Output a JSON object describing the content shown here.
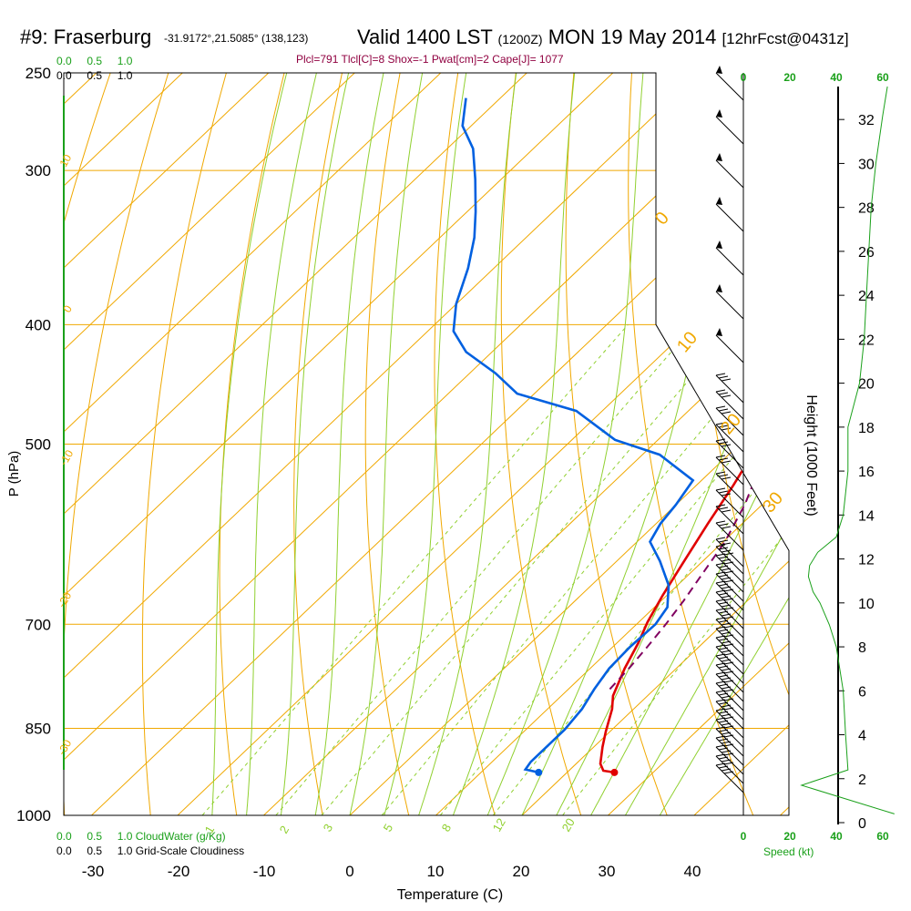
{
  "header": {
    "station": "#9: Fraserburg",
    "coords": "-31.9172°,21.5085° (138,123)",
    "valid": "Valid 1400 LST",
    "utc": "(1200Z)",
    "date": "MON 19 May 2014",
    "fcst": "[12hrFcst@0431z]"
  },
  "indices": "Plcl=791 Tlcl[C]=8 Shox=-1 Pwat[cm]=2 Cape[J]= 1077",
  "scales": {
    "cloudwater": [
      "0.0",
      "0.5",
      "1.0"
    ],
    "cloudiness": [
      "0.0",
      "0.5",
      "1.0"
    ],
    "cloudwater_label": "CloudWater (g/Kg)",
    "cloudiness_label": "Grid-Scale Cloudiness",
    "speed": [
      "0",
      "20",
      "40",
      "60"
    ],
    "speed_label": "Speed (kt)"
  },
  "chart_data": {
    "type": "line",
    "subtype": "skew-T log-P sounding",
    "xlabel": "Temperature (C)",
    "ylabel": "P (hPa)",
    "y2label": "Height (1000 Feet)",
    "xlim": [
      -33,
      40
    ],
    "ylim": [
      1000,
      250
    ],
    "x_ticks": [
      -30,
      -20,
      -10,
      0,
      10,
      20,
      30,
      40
    ],
    "y_ticks": [
      250,
      300,
      400,
      500,
      700,
      850,
      1000
    ],
    "height_ticks": [
      0,
      2,
      4,
      6,
      8,
      10,
      12,
      14,
      16,
      18,
      20,
      22,
      24,
      26,
      28,
      30,
      32
    ],
    "isotherm_labels": [
      "10",
      "0",
      "-10",
      "-20",
      "-30",
      "0",
      "10",
      "20",
      "30"
    ],
    "mixing_ratio_labels": [
      "1",
      "2",
      "3",
      "5",
      "8",
      "12",
      "20"
    ],
    "series": [
      {
        "name": "Temperature",
        "color": "#e00000",
        "points": [
          [
            25.5,
            923
          ],
          [
            24,
            920
          ],
          [
            22.8,
            908
          ],
          [
            21,
            880
          ],
          [
            19.5,
            855
          ],
          [
            17.5,
            820
          ],
          [
            16,
            800
          ],
          [
            14,
            760
          ],
          [
            12.5,
            725
          ],
          [
            11,
            697
          ],
          [
            9.5,
            663
          ],
          [
            8,
            626
          ],
          [
            6,
            580
          ],
          [
            4.3,
            540
          ],
          [
            2.2,
            500
          ],
          [
            1.2,
            478
          ],
          [
            -0.3,
            442
          ],
          [
            -2.5,
            408
          ],
          [
            -5,
            377
          ],
          [
            -7.5,
            350
          ],
          [
            -9.5,
            327
          ],
          [
            -10.5,
            308
          ],
          [
            -11.3,
            290
          ],
          [
            -12,
            275
          ],
          [
            -12.8,
            262
          ]
        ]
      },
      {
        "name": "Dewpoint",
        "color": "#0060e0",
        "points": [
          [
            16.7,
            923
          ],
          [
            14.8,
            918
          ],
          [
            14.5,
            905
          ],
          [
            14.5,
            885
          ],
          [
            14.5,
            852
          ],
          [
            14,
            820
          ],
          [
            13,
            790
          ],
          [
            12.2,
            760
          ],
          [
            12,
            730
          ],
          [
            12.2,
            700
          ],
          [
            11.5,
            678
          ],
          [
            9,
            651
          ],
          [
            5,
            622
          ],
          [
            1.5,
            600
          ],
          [
            0.5,
            580
          ],
          [
            0,
            560
          ],
          [
            -1,
            535
          ],
          [
            -8,
            510
          ],
          [
            -15,
            496
          ],
          [
            -23,
            470
          ],
          [
            -32,
            455
          ],
          [
            -37,
            438
          ],
          [
            -43,
            421
          ],
          [
            -47,
            405
          ],
          [
            -50,
            385
          ],
          [
            -53,
            360
          ],
          [
            -56,
            340
          ],
          [
            -59,
            324
          ],
          [
            -63,
            305
          ],
          [
            -67,
            288
          ],
          [
            -71,
            276
          ],
          [
            -74,
            262
          ]
        ]
      },
      {
        "name": "Parcel",
        "color": "#800060",
        "dashed": true,
        "points": [
          [
            14.8,
            790
          ],
          [
            14.5,
            760
          ],
          [
            14,
            730
          ],
          [
            13.4,
            700
          ],
          [
            12.6,
            670
          ],
          [
            11.6,
            640
          ],
          [
            10.2,
            600
          ],
          [
            8,
            560
          ],
          [
            5,
            520
          ],
          [
            2,
            490
          ],
          [
            -1,
            462
          ],
          [
            -4,
            432
          ],
          [
            -7.5,
            402
          ],
          [
            -11,
            376
          ],
          [
            -15,
            350
          ],
          [
            -19,
            327
          ],
          [
            -23,
            306
          ],
          [
            -27,
            288
          ],
          [
            -31,
            272
          ]
        ]
      },
      {
        "name": "Height profile",
        "color": "#1aa01a",
        "points": [
          [
            65,
            0.4
          ],
          [
            25,
            1.7
          ],
          [
            45,
            2.4
          ],
          [
            44,
            4
          ],
          [
            43,
            6
          ],
          [
            40,
            8
          ],
          [
            37,
            9
          ],
          [
            33,
            10
          ],
          [
            30,
            10.5
          ],
          [
            28,
            11.2
          ],
          [
            28.5,
            11.7
          ],
          [
            32,
            12.3
          ],
          [
            40,
            13
          ],
          [
            43,
            14
          ],
          [
            45,
            16
          ],
          [
            45,
            18
          ],
          [
            50,
            20
          ],
          [
            52,
            22
          ],
          [
            53,
            24
          ],
          [
            54,
            26
          ],
          [
            55,
            28
          ],
          [
            57,
            30
          ],
          [
            60,
            32.2
          ],
          [
            62,
            33.5
          ]
        ]
      }
    ]
  }
}
